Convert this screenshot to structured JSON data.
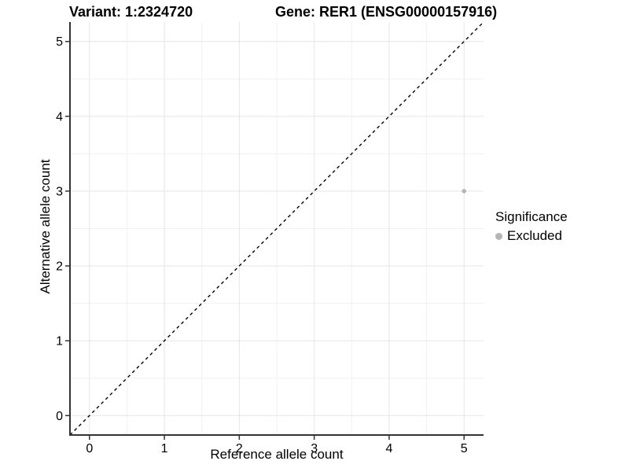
{
  "chart_data": {
    "type": "scatter",
    "title_left": "Variant: 1:2324720",
    "title_right": "Gene: RER1 (ENSG00000157916)",
    "xlabel": "Reference allele count",
    "ylabel": "Alternative allele count",
    "xlim": [
      -0.26,
      5.26
    ],
    "ylim": [
      -0.26,
      5.26
    ],
    "x_major_ticks": [
      0,
      1,
      2,
      3,
      4,
      5
    ],
    "y_major_ticks": [
      0,
      1,
      2,
      3,
      4,
      5
    ],
    "x_minor_ticks": [
      0.5,
      1.5,
      2.5,
      3.5,
      4.5
    ],
    "y_minor_ticks": [
      0.5,
      1.5,
      2.5,
      3.5,
      4.5
    ],
    "grid": true,
    "identity_line": {
      "style": "dashed",
      "slope": 1,
      "intercept": 0
    },
    "points": [
      {
        "x": 5,
        "y": 3,
        "series": "Excluded"
      }
    ],
    "series_colors": {
      "Excluded": "#b5b5b5"
    },
    "legend": {
      "title": "Significance",
      "position": "right",
      "entries": [
        {
          "label": "Excluded",
          "color": "#b5b5b5"
        }
      ]
    },
    "colors": {
      "background": "#ffffff",
      "grid_major": "#e5e5e5",
      "grid_minor": "#f1f1f1",
      "axis_line": "#333333",
      "tick": "#333333",
      "text": "#000000",
      "identity_line": "#000000"
    }
  }
}
